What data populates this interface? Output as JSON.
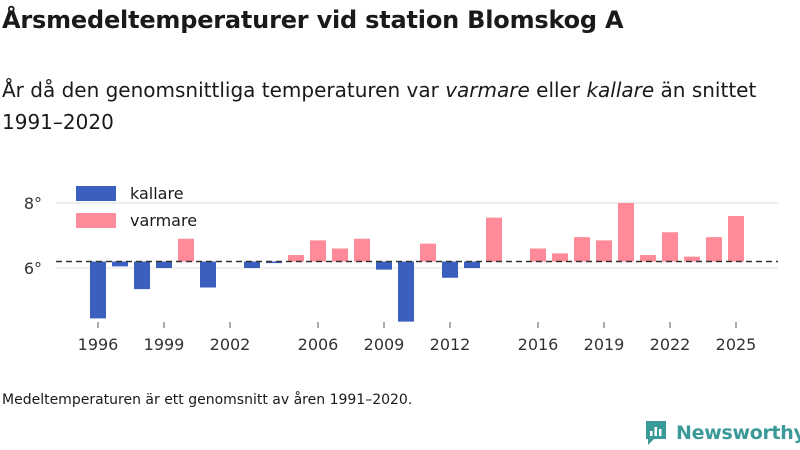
{
  "title": "Årsmedeltemperaturer vid station Blomskog A",
  "subtitle": {
    "part1": "År då den genomsnittliga temperaturen var ",
    "warm": "varmare",
    "part2": " eller ",
    "cold": "kallare",
    "part3": " än snittet 1991–2020"
  },
  "note": "Medeltemperaturen är ett genomsnitt av åren 1991–2020.",
  "brand": "Newsworthy",
  "colors": {
    "cold": "#3b5fbf",
    "warm": "#ff8a99",
    "grid": "#dddddd",
    "text": "#333333",
    "brand": "#3b9a99"
  },
  "chart_data": {
    "type": "bar",
    "baseline": 6.2,
    "ylim": [
      4.0,
      8.4
    ],
    "yticks": [
      6,
      8
    ],
    "ytick_labels": [
      "6°",
      "8°"
    ],
    "xticks": [
      1996,
      1999,
      2002,
      2006,
      2009,
      2012,
      2016,
      2019,
      2022,
      2025
    ],
    "legend": [
      {
        "label": "kallare",
        "series": "cold"
      },
      {
        "label": "varmare",
        "series": "warm"
      }
    ],
    "x": [
      1996,
      1997,
      1998,
      1999,
      2000,
      2001,
      2002,
      2003,
      2004,
      2005,
      2006,
      2007,
      2008,
      2009,
      2010,
      2011,
      2012,
      2013,
      2014,
      2015,
      2016,
      2017,
      2018,
      2019,
      2020,
      2021,
      2022,
      2023,
      2024,
      2025
    ],
    "values": [
      4.45,
      6.05,
      5.35,
      6.0,
      6.9,
      5.4,
      null,
      6.0,
      6.15,
      6.4,
      6.85,
      6.6,
      6.9,
      5.95,
      4.35,
      6.75,
      5.7,
      6.0,
      7.55,
      null,
      6.6,
      6.45,
      6.95,
      6.85,
      8.0,
      6.4,
      7.1,
      6.35,
      6.95,
      7.6
    ]
  }
}
